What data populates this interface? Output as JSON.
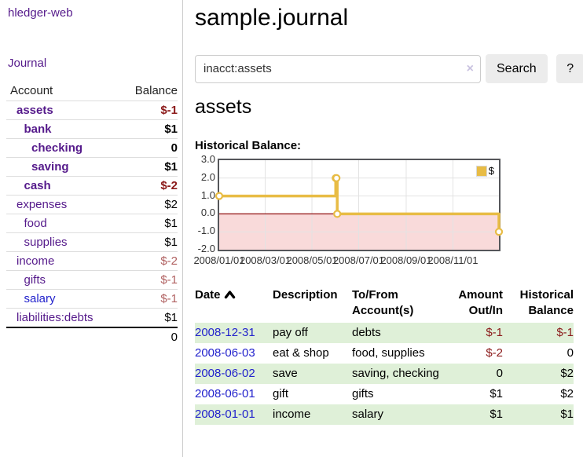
{
  "sidebar": {
    "app_title": "hledger-web",
    "nav": {
      "journal_label": "Journal"
    },
    "accounts_table": {
      "headers": {
        "account": "Account",
        "balance": "Balance"
      },
      "rows": [
        {
          "name": "assets",
          "balance": "$-1",
          "level": 0,
          "bold": true,
          "neg": "dark"
        },
        {
          "name": "bank",
          "balance": "$1",
          "level": 1,
          "bold": true,
          "neg": null
        },
        {
          "name": "checking",
          "balance": "0",
          "level": 2,
          "bold": true,
          "neg": null
        },
        {
          "name": "saving",
          "balance": "$1",
          "level": 2,
          "bold": true,
          "neg": null
        },
        {
          "name": "cash",
          "balance": "$-2",
          "level": 1,
          "bold": true,
          "neg": "dark"
        },
        {
          "name": "expenses",
          "balance": "$2",
          "level": 0,
          "bold": false,
          "neg": null
        },
        {
          "name": "food",
          "balance": "$1",
          "level": 1,
          "bold": false,
          "neg": null
        },
        {
          "name": "supplies",
          "balance": "$1",
          "level": 1,
          "bold": false,
          "neg": null
        },
        {
          "name": "income",
          "balance": "$-2",
          "level": 0,
          "bold": false,
          "neg": "light"
        },
        {
          "name": "gifts",
          "balance": "$-1",
          "level": 1,
          "bold": false,
          "neg": "light"
        },
        {
          "name": "salary",
          "balance": "$-1",
          "level": 1,
          "bold": false,
          "neg": "light",
          "link_color": "blue"
        },
        {
          "name": "liabilities:debts",
          "balance": "$1",
          "level": 0,
          "bold": false,
          "neg": null
        }
      ],
      "total": "0"
    }
  },
  "main": {
    "title": "sample.journal",
    "search": {
      "value": "inacct:assets",
      "clear_icon": "×",
      "search_button": "Search",
      "help_button": "?"
    },
    "account_heading": "assets",
    "chart_heading": "Historical Balance:",
    "transactions": {
      "headers": [
        "Date",
        "Description",
        "To/From Account(s)",
        "Amount Out/In",
        "Historical Balance"
      ],
      "rows": [
        {
          "date": "2008-12-31",
          "description": "pay off",
          "accounts": "debts",
          "amount": "$-1",
          "amount_negative": true,
          "balance": "$-1",
          "balance_negative": true,
          "highlighted": true
        },
        {
          "date": "2008-06-03",
          "description": "eat & shop",
          "accounts": "food, supplies",
          "amount": "$-2",
          "amount_negative": true,
          "balance": "0",
          "balance_negative": false,
          "highlighted": false
        },
        {
          "date": "2008-06-02",
          "description": "save",
          "accounts": "saving, checking",
          "amount": "0",
          "amount_negative": false,
          "balance": "$2",
          "balance_negative": false,
          "highlighted": true
        },
        {
          "date": "2008-06-01",
          "description": "gift",
          "accounts": "gifts",
          "amount": "$1",
          "amount_negative": false,
          "balance": "$2",
          "balance_negative": false,
          "highlighted": false
        },
        {
          "date": "2008-01-01",
          "description": "income",
          "accounts": "salary",
          "amount": "$1",
          "amount_negative": false,
          "balance": "$1",
          "balance_negative": false,
          "highlighted": true
        }
      ]
    }
  },
  "chart_data": {
    "type": "line",
    "step": true,
    "title": "Historical Balance:",
    "series": [
      {
        "name": "$",
        "x": [
          "2008-01-01",
          "2008-06-01",
          "2008-06-02",
          "2008-06-03",
          "2008-12-31"
        ],
        "y": [
          1,
          2,
          2,
          0,
          -1
        ]
      }
    ],
    "xlim": [
      "2008-01-01",
      "2008-12-31"
    ],
    "ylim": [
      -2,
      3
    ],
    "yticks": [
      3.0,
      2.0,
      1.0,
      0.0,
      -1.0,
      -2.0
    ],
    "xticks": [
      "2008/01/01",
      "2008/03/01",
      "2008/05/01",
      "2008/07/01",
      "2008/09/01",
      "2008/11/01"
    ],
    "legend": {
      "position": "top-right",
      "label": "$"
    },
    "colors": {
      "line": "#e8bc45",
      "marker_fill": "#ffffff",
      "negative_region": "#f9dada",
      "zero_line": "#8f0d0d",
      "grid": "#e3e3e3",
      "border": "#55565a"
    }
  }
}
